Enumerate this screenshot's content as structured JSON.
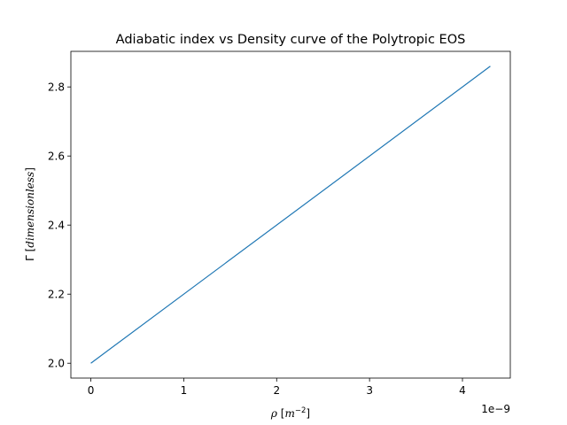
{
  "chart_data": {
    "type": "line",
    "title": "Adiabatic index vs Density curve of the Polytropic EOS",
    "xlabel": {
      "symbol": "ρ",
      "bracket_open": "[",
      "unit_base": "m",
      "unit_exp": "−2",
      "bracket_close": "]"
    },
    "ylabel": {
      "symbol": "Γ",
      "bracket_open": "[",
      "unit": "dimensionless",
      "bracket_close": "]"
    },
    "x_offset_text": "1e−9",
    "x_scale": 1e-09,
    "xlim": [
      -2.15e-10,
      4.515e-09
    ],
    "ylim": [
      1.957,
      2.903
    ],
    "x_ticks": [
      0,
      1e-09,
      2e-09,
      3e-09,
      4e-09
    ],
    "x_tick_labels": [
      "0",
      "1",
      "2",
      "3",
      "4"
    ],
    "y_ticks": [
      2.0,
      2.2,
      2.4,
      2.6,
      2.8
    ],
    "y_tick_labels": [
      "2.0",
      "2.2",
      "2.4",
      "2.6",
      "2.8"
    ],
    "grid": false,
    "series": [
      {
        "color": "#1f77b4",
        "x": [
          0,
          4.3e-09
        ],
        "y": [
          2.0,
          2.86
        ]
      }
    ]
  }
}
